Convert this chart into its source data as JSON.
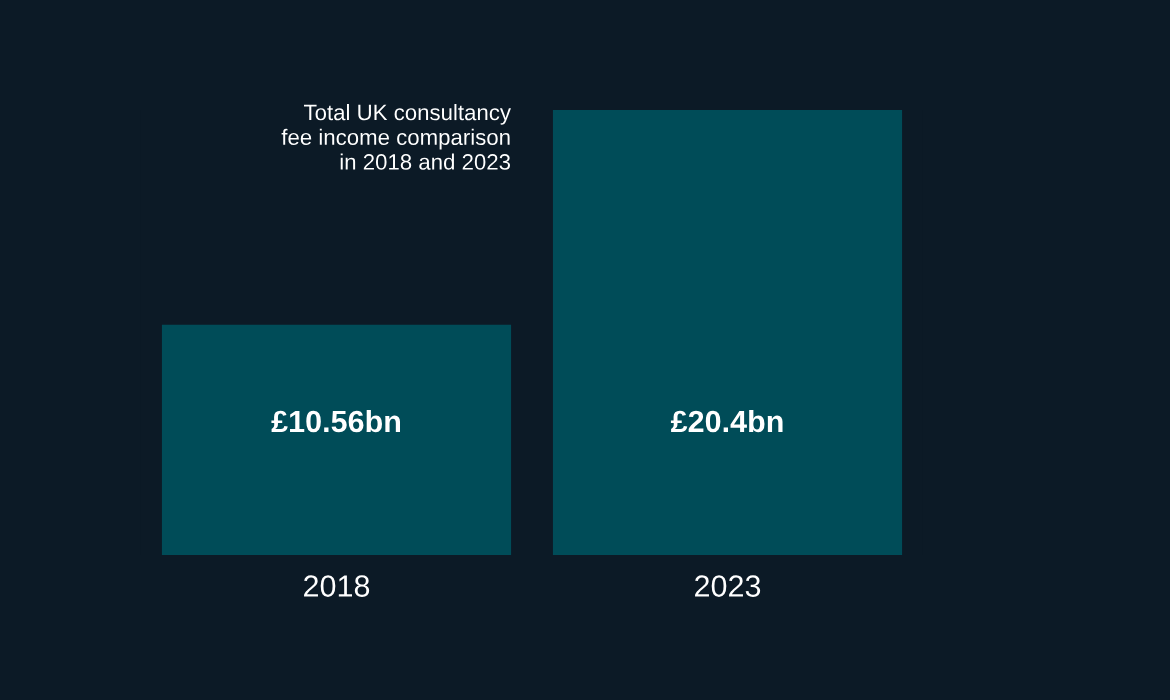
{
  "chart_data": {
    "type": "bar",
    "title": "Total UK consultancy\nfee income comparison\nin 2018 and 2023",
    "categories": [
      "2018",
      "2023"
    ],
    "values": [
      10.56,
      20.4
    ],
    "value_labels": [
      "£10.56bn",
      "£20.4bn"
    ],
    "color": "#004c58",
    "grid": false,
    "legend": false
  }
}
